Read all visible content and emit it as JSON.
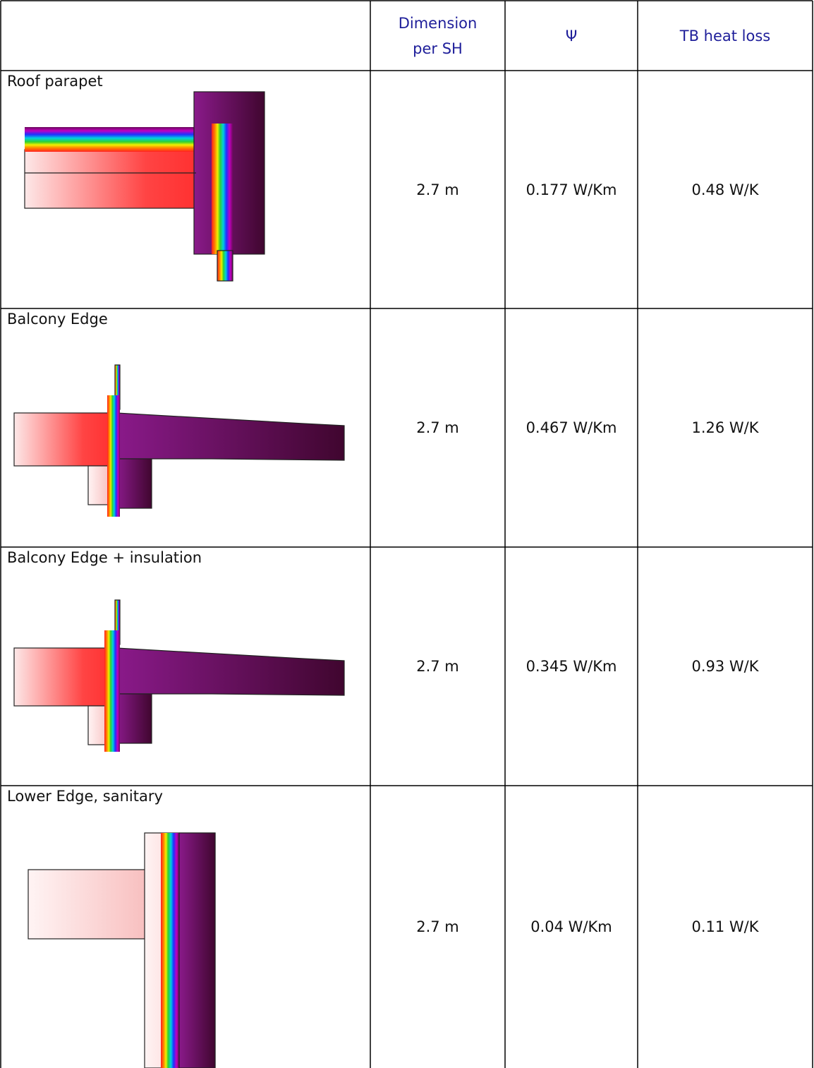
{
  "table": {
    "header": [
      "Dimension per SH",
      "Ψ",
      "TB heat loss"
    ],
    "rows": [
      [
        "Roof parapet",
        "2.7 m",
        "0.177 W/Km",
        "0.48 W/K"
      ],
      [
        "Balcony Edge",
        "2.7 m",
        "0.467 W/Km",
        "1.26 W/K"
      ],
      [
        "Balcony Edge + insulation",
        "2.7 m",
        "0.345 W/Km",
        "0.93 W/K"
      ],
      [
        "Lower Edge, sanitary",
        "2.7 m",
        "0.04 W/Km",
        "0.11 W/K"
      ]
    ]
  }
}
